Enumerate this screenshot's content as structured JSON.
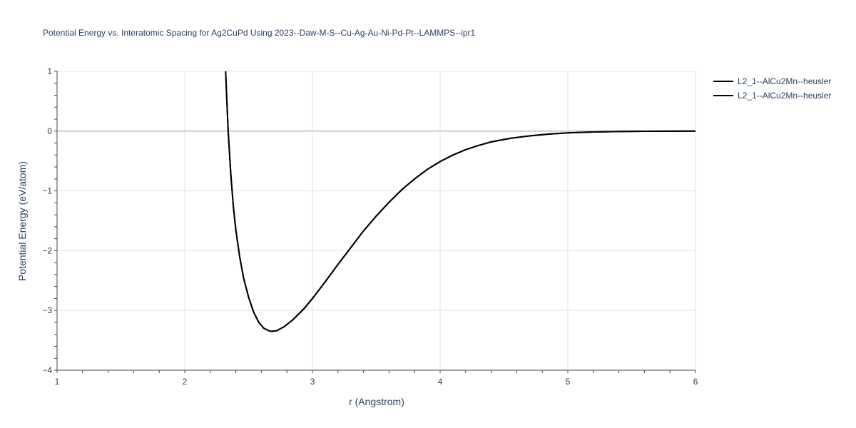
{
  "chart_data": {
    "type": "line",
    "title": "Potential Energy vs. Interatomic Spacing for Ag2CuPd Using 2023--Daw-M-S--Cu-Ag-Au-Ni-Pd-Pt--LAMMPS--ipr1",
    "xlabel": "r (Angstrom)",
    "ylabel": "Potential Energy (eV/atom)",
    "xlim": [
      1,
      6
    ],
    "ylim": [
      -4,
      1
    ],
    "x_ticks": [
      "1",
      "2",
      "3",
      "4",
      "5",
      "6"
    ],
    "y_ticks": [
      "1",
      "0",
      "−1",
      "−2",
      "−3",
      "−4"
    ],
    "grid": true,
    "legend_position": "top-right",
    "series": [
      {
        "name": "L2_1--AlCu2Mn--heusler",
        "color": "#000000",
        "x": [
          2.32,
          2.34,
          2.36,
          2.38,
          2.4,
          2.43,
          2.46,
          2.5,
          2.54,
          2.58,
          2.62,
          2.67,
          2.72,
          2.78,
          2.85,
          2.93,
          3.0,
          3.1,
          3.2,
          3.3,
          3.4,
          3.5,
          3.6,
          3.7,
          3.8,
          3.9,
          4.0,
          4.1,
          4.2,
          4.3,
          4.4,
          4.55,
          4.7,
          4.85,
          5.0,
          5.2,
          5.4,
          5.6,
          5.8,
          6.0
        ],
        "y": [
          1.0,
          0.0,
          -0.7,
          -1.25,
          -1.65,
          -2.1,
          -2.45,
          -2.78,
          -3.03,
          -3.2,
          -3.3,
          -3.35,
          -3.34,
          -3.27,
          -3.15,
          -2.98,
          -2.8,
          -2.52,
          -2.23,
          -1.95,
          -1.67,
          -1.42,
          -1.19,
          -0.98,
          -0.8,
          -0.64,
          -0.51,
          -0.4,
          -0.31,
          -0.24,
          -0.18,
          -0.12,
          -0.08,
          -0.05,
          -0.03,
          -0.015,
          -0.007,
          -0.003,
          -0.001,
          0.0
        ]
      },
      {
        "name": "L2_1--AlCu2Mn--heusler",
        "color": "#000000",
        "x": [
          2.32,
          2.34,
          2.36,
          2.38,
          2.4,
          2.43,
          2.46,
          2.5,
          2.54,
          2.58,
          2.62,
          2.67,
          2.72,
          2.78,
          2.85,
          2.93,
          3.0,
          3.1,
          3.2,
          3.3,
          3.4,
          3.5,
          3.6,
          3.7,
          3.8,
          3.9,
          4.0,
          4.1,
          4.2,
          4.3,
          4.4,
          4.55,
          4.7,
          4.85,
          5.0,
          5.2,
          5.4,
          5.6,
          5.8,
          6.0
        ],
        "y": [
          1.0,
          0.0,
          -0.7,
          -1.25,
          -1.65,
          -2.1,
          -2.45,
          -2.78,
          -3.03,
          -3.2,
          -3.3,
          -3.35,
          -3.34,
          -3.27,
          -3.15,
          -2.98,
          -2.8,
          -2.52,
          -2.23,
          -1.95,
          -1.67,
          -1.42,
          -1.19,
          -0.98,
          -0.8,
          -0.64,
          -0.51,
          -0.4,
          -0.31,
          -0.24,
          -0.18,
          -0.12,
          -0.08,
          -0.05,
          -0.03,
          -0.015,
          -0.007,
          -0.003,
          -0.001,
          0.0
        ]
      }
    ]
  }
}
